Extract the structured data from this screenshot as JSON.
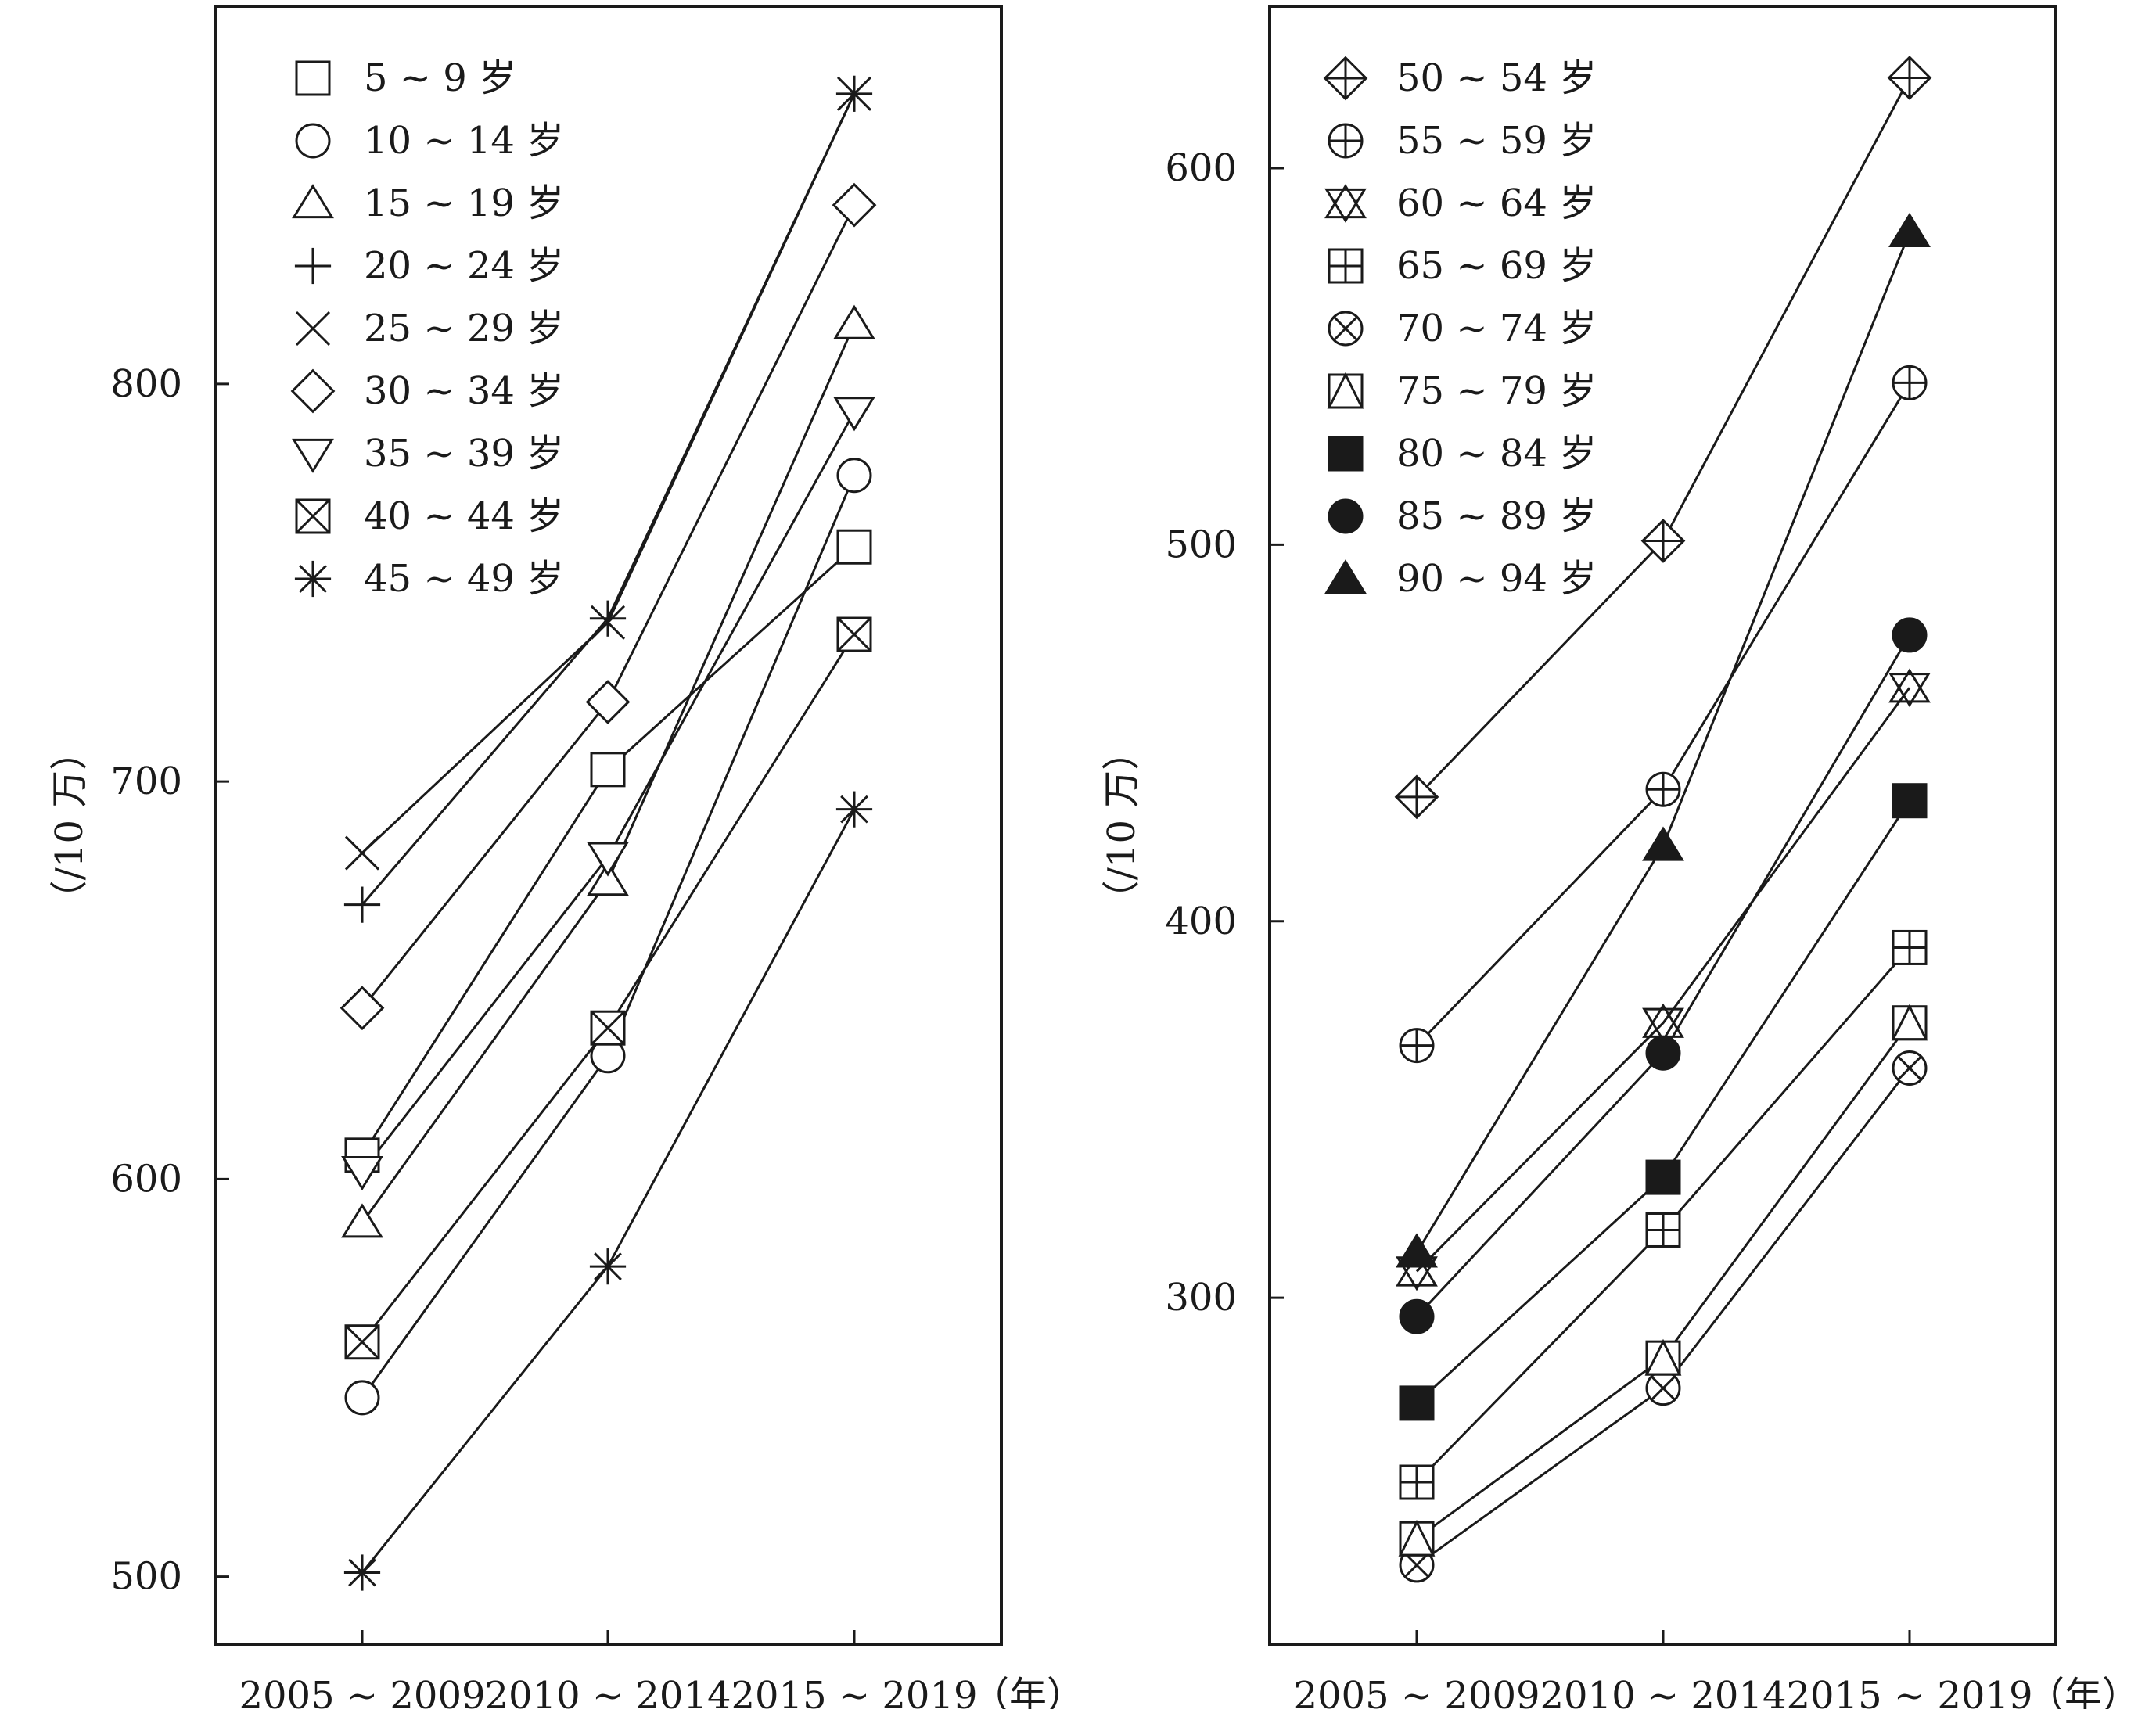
{
  "chart_data": [
    {
      "type": "line",
      "categories": [
        "2005 ~ 2009",
        "2010 ~ 2014",
        "2015 ~ 2019"
      ],
      "x_unit": "（年）",
      "ylabel": "（/10 万）",
      "ylim": [
        483,
        895
      ],
      "yticks": [
        500,
        600,
        700,
        800
      ],
      "grid": false,
      "legend_position": "top-left",
      "series": [
        {
          "name": "5 ~ 9 岁",
          "marker": "square",
          "values": [
            606,
            703,
            759
          ]
        },
        {
          "name": "10 ~ 14 岁",
          "marker": "circle",
          "values": [
            545,
            631,
            777
          ]
        },
        {
          "name": "15 ~ 19 岁",
          "marker": "triangle-up",
          "values": [
            589,
            675,
            815
          ]
        },
        {
          "name": "20 ~ 24 岁",
          "marker": "plus",
          "values": [
            669,
            741,
            873
          ]
        },
        {
          "name": "25 ~ 29 岁",
          "marker": "cross",
          "values": [
            682,
            740,
            873
          ]
        },
        {
          "name": "30 ~ 34 岁",
          "marker": "diamond",
          "values": [
            643,
            720,
            845
          ]
        },
        {
          "name": "35 ~ 39 岁",
          "marker": "triangle-down",
          "values": [
            602,
            681,
            793
          ]
        },
        {
          "name": "40 ~ 44 岁",
          "marker": "square-x",
          "values": [
            559,
            638,
            737
          ]
        },
        {
          "name": "45 ~ 49 岁",
          "marker": "asterisk",
          "values": [
            501,
            578,
            693
          ]
        }
      ]
    },
    {
      "type": "line",
      "categories": [
        "2005 ~ 2009",
        "2010 ~ 2014",
        "2015 ~ 2019"
      ],
      "x_unit": "（年）",
      "ylabel": "（/10 万）",
      "ylim": [
        208,
        643
      ],
      "yticks": [
        300,
        400,
        500,
        600
      ],
      "grid": false,
      "legend_position": "top-left",
      "series": [
        {
          "name": "50 ~ 54 岁",
          "marker": "diamond-plus",
          "values": [
            433,
            501,
            624
          ]
        },
        {
          "name": "55 ~ 59 岁",
          "marker": "circle-plus",
          "values": [
            367,
            435,
            543
          ]
        },
        {
          "name": "60 ~ 64 岁",
          "marker": "star-of-david",
          "values": [
            307,
            373,
            462
          ]
        },
        {
          "name": "65 ~ 69 岁",
          "marker": "square-plus",
          "values": [
            251,
            318,
            393
          ]
        },
        {
          "name": "70 ~ 74 岁",
          "marker": "circle-x",
          "values": [
            229,
            276,
            361
          ]
        },
        {
          "name": "75 ~ 79 岁",
          "marker": "square-triangle",
          "values": [
            236,
            284,
            373
          ]
        },
        {
          "name": "80 ~ 84 岁",
          "marker": "filled-square",
          "values": [
            272,
            332,
            432
          ]
        },
        {
          "name": "85 ~ 89 岁",
          "marker": "filled-circle",
          "values": [
            295,
            365,
            476
          ]
        },
        {
          "name": "90 ~ 94 岁",
          "marker": "filled-triangle",
          "values": [
            312,
            420,
            583
          ]
        }
      ]
    }
  ]
}
